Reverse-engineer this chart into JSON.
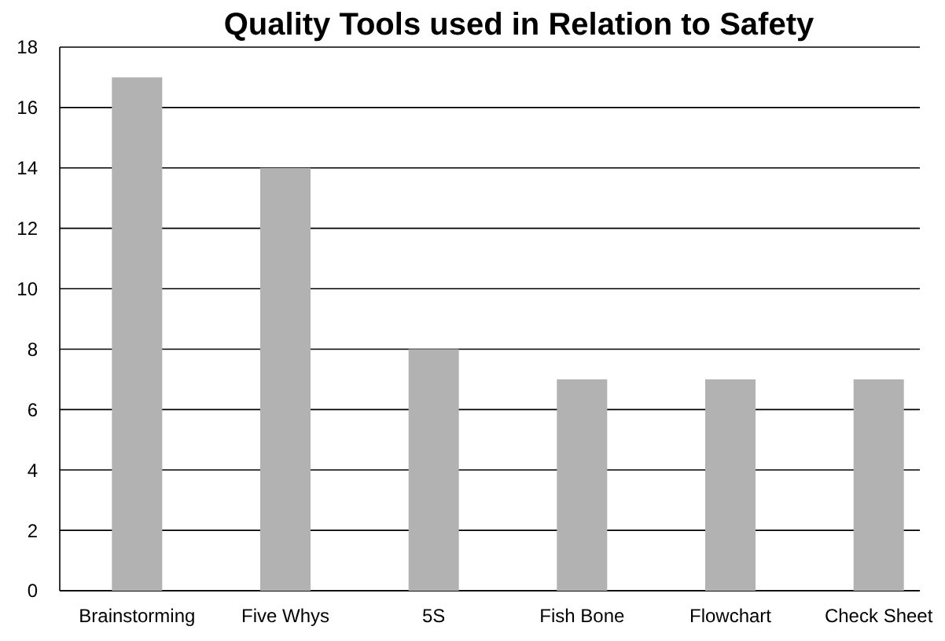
{
  "chart_data": {
    "type": "bar",
    "title": "Quality Tools used in Relation to Safety",
    "categories": [
      "Brainstorming",
      "Five Whys",
      "5S",
      "Fish Bone",
      "Flowchart",
      "Check Sheet"
    ],
    "values": [
      17,
      14,
      8,
      7,
      7,
      7
    ],
    "color": "#b2b2b2",
    "ylim": [
      0,
      18
    ],
    "yticks": [
      0,
      2,
      4,
      6,
      8,
      10,
      12,
      14,
      16,
      18
    ],
    "grid": "y"
  }
}
